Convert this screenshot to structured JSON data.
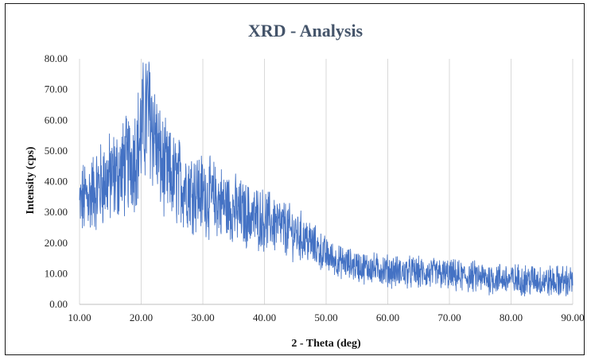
{
  "chart_data": {
    "type": "line",
    "title": "XRD - Analysis",
    "xlabel": "2 - Theta (deg)",
    "ylabel": "Intensity (cps)",
    "xlim": [
      10,
      90
    ],
    "ylim": [
      0,
      80
    ],
    "x_ticks": [
      "10.00",
      "20.00",
      "30.00",
      "40.00",
      "50.00",
      "60.00",
      "70.00",
      "80.00",
      "90.00"
    ],
    "y_ticks": [
      "0.00",
      "10.00",
      "20.00",
      "30.00",
      "40.00",
      "50.00",
      "60.00",
      "70.00",
      "80.00"
    ],
    "grid": "vertical",
    "series": [
      {
        "color": "#4472c4",
        "x": [
          10,
          11,
          12,
          13,
          14,
          15,
          16,
          17,
          18,
          19,
          20,
          20.5,
          21,
          21.5,
          22,
          22.5,
          23,
          24,
          25,
          26,
          27,
          28,
          29,
          30,
          31,
          32,
          33,
          34,
          35,
          36,
          37,
          38,
          39,
          40,
          41,
          42,
          43,
          44,
          45,
          46,
          47,
          48,
          49,
          50,
          51,
          52,
          53,
          54,
          55,
          56,
          57,
          58,
          59,
          60,
          62,
          64,
          66,
          68,
          70,
          72,
          74,
          76,
          78,
          80,
          82,
          84,
          86,
          88,
          90
        ],
        "values": [
          32,
          35,
          36,
          38,
          40,
          41,
          42,
          44,
          46,
          49,
          55,
          60,
          63,
          62,
          58,
          52,
          47,
          43,
          41,
          40,
          39,
          38,
          37,
          36,
          35,
          34,
          33,
          32,
          31,
          30,
          29,
          28.5,
          28,
          27.5,
          27,
          26,
          25,
          24,
          23,
          22,
          21,
          19,
          17.5,
          16,
          15,
          14,
          13.5,
          13,
          12.5,
          12,
          12,
          11.5,
          11.5,
          11,
          10.5,
          10.5,
          10,
          10,
          9.5,
          9,
          9,
          8.5,
          8.5,
          8,
          8,
          8,
          7.5,
          7.5,
          7.5
        ]
      }
    ]
  }
}
